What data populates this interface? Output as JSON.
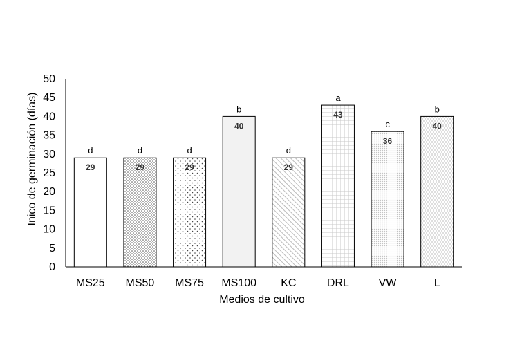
{
  "chart_data": {
    "type": "bar",
    "title": "",
    "xlabel": "Medios de cultivo",
    "ylabel": "Inico de germinación (días)",
    "ylim": [
      0,
      50
    ],
    "yticks": [
      0,
      5,
      10,
      15,
      20,
      25,
      30,
      35,
      40,
      45,
      50
    ],
    "grid": false,
    "legend": "none",
    "categories": [
      "MS25",
      "MS50",
      "MS75",
      "MS100",
      "KC",
      "DRL",
      "VW",
      "L"
    ],
    "values": [
      29,
      29,
      29,
      40,
      29,
      43,
      36,
      40
    ],
    "value_labels": [
      "29",
      "29",
      "29",
      "40",
      "29",
      "43",
      "36",
      "40"
    ],
    "significance_letters": [
      "d",
      "d",
      "d",
      "b",
      "d",
      "a",
      "c",
      "b"
    ],
    "fill_patterns": [
      "solid-white",
      "dense-dots",
      "sparse-dots",
      "light-gray",
      "diagonal-hatch",
      "grid",
      "fine-dots",
      "vertical-dashes"
    ]
  }
}
